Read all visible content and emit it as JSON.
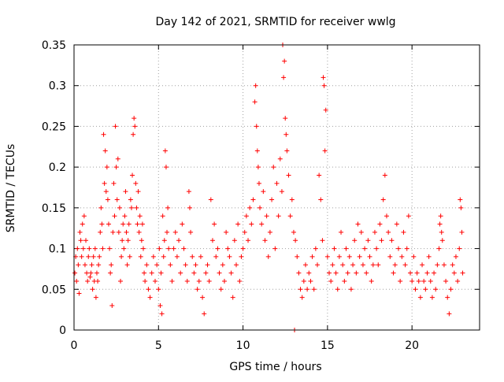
{
  "chart_data": {
    "type": "scatter",
    "title": "Day 142 of 2021, SRMTID for receiver wwlg",
    "xlabel": "GPS time / hours",
    "ylabel": "SRMTID / TECUs",
    "xlim": [
      0,
      24
    ],
    "ylim": [
      0,
      0.35
    ],
    "x_ticks": [
      0,
      5,
      10,
      15,
      20
    ],
    "x_tick_labels": [
      "0",
      "5",
      "10",
      "15",
      "20"
    ],
    "y_ticks": [
      0,
      0.05,
      0.1,
      0.15,
      0.2,
      0.25,
      0.3,
      0.35
    ],
    "y_tick_labels": [
      "0",
      "0.05",
      "0.1",
      "0.15",
      "0.2",
      "0.25",
      "0.3",
      "0.35"
    ],
    "grid": true,
    "marker": "plus",
    "series": [
      {
        "name": "SRMTID",
        "color": "#ff0000",
        "points": [
          [
            0.05,
            0.07
          ],
          [
            0.1,
            0.09
          ],
          [
            0.15,
            0.06
          ],
          [
            0.2,
            0.1
          ],
          [
            0.25,
            0.08
          ],
          [
            0.3,
            0.045
          ],
          [
            0.35,
            0.12
          ],
          [
            0.4,
            0.11
          ],
          [
            0.45,
            0.09
          ],
          [
            0.5,
            0.13
          ],
          [
            0.55,
            0.1
          ],
          [
            0.6,
            0.14
          ],
          [
            0.65,
            0.08
          ],
          [
            0.7,
            0.11
          ],
          [
            0.75,
            0.07
          ],
          [
            0.8,
            0.06
          ],
          [
            0.85,
            0.09
          ],
          [
            0.9,
            0.1
          ],
          [
            0.95,
            0.065
          ],
          [
            1.0,
            0.07
          ],
          [
            1.05,
            0.08
          ],
          [
            1.1,
            0.05
          ],
          [
            1.15,
            0.09
          ],
          [
            1.2,
            0.06
          ],
          [
            1.25,
            0.1
          ],
          [
            1.3,
            0.04
          ],
          [
            1.35,
            0.07
          ],
          [
            1.4,
            0.06
          ],
          [
            1.45,
            0.08
          ],
          [
            1.5,
            0.09
          ],
          [
            1.55,
            0.12
          ],
          [
            1.6,
            0.15
          ],
          [
            1.65,
            0.13
          ],
          [
            1.7,
            0.1
          ],
          [
            1.75,
            0.24
          ],
          [
            1.8,
            0.18
          ],
          [
            1.85,
            0.22
          ],
          [
            1.9,
            0.17
          ],
          [
            1.95,
            0.2
          ],
          [
            2.0,
            0.16
          ],
          [
            2.05,
            0.13
          ],
          [
            2.1,
            0.1
          ],
          [
            2.15,
            0.07
          ],
          [
            2.2,
            0.08
          ],
          [
            2.25,
            0.03
          ],
          [
            2.3,
            0.12
          ],
          [
            2.35,
            0.18
          ],
          [
            2.4,
            0.14
          ],
          [
            2.45,
            0.25
          ],
          [
            2.5,
            0.2
          ],
          [
            2.55,
            0.16
          ],
          [
            2.6,
            0.21
          ],
          [
            2.65,
            0.12
          ],
          [
            2.7,
            0.15
          ],
          [
            2.75,
            0.06
          ],
          [
            2.8,
            0.09
          ],
          [
            2.85,
            0.11
          ],
          [
            2.9,
            0.13
          ],
          [
            2.95,
            0.1
          ],
          [
            3.0,
            0.14
          ],
          [
            3.05,
            0.17
          ],
          [
            3.1,
            0.12
          ],
          [
            3.15,
            0.08
          ],
          [
            3.2,
            0.11
          ],
          [
            3.25,
            0.13
          ],
          [
            3.3,
            0.09
          ],
          [
            3.35,
            0.16
          ],
          [
            3.4,
            0.15
          ],
          [
            3.45,
            0.19
          ],
          [
            3.5,
            0.24
          ],
          [
            3.55,
            0.26
          ],
          [
            3.6,
            0.25
          ],
          [
            3.65,
            0.18
          ],
          [
            3.7,
            0.15
          ],
          [
            3.75,
            0.13
          ],
          [
            3.8,
            0.17
          ],
          [
            3.85,
            0.12
          ],
          [
            3.9,
            0.14
          ],
          [
            3.95,
            0.09
          ],
          [
            4.0,
            0.11
          ],
          [
            4.05,
            0.13
          ],
          [
            4.1,
            0.1
          ],
          [
            4.15,
            0.07
          ],
          [
            4.2,
            0.06
          ],
          [
            4.3,
            0.08
          ],
          [
            4.4,
            0.05
          ],
          [
            4.5,
            0.04
          ],
          [
            4.6,
            0.07
          ],
          [
            4.7,
            0.09
          ],
          [
            4.8,
            0.06
          ],
          [
            4.9,
            0.08
          ],
          [
            5.0,
            0.05
          ],
          [
            5.05,
            0.1
          ],
          [
            5.1,
            0.03
          ],
          [
            5.15,
            0.07
          ],
          [
            5.2,
            0.02
          ],
          [
            5.25,
            0.14
          ],
          [
            5.3,
            0.09
          ],
          [
            5.35,
            0.11
          ],
          [
            5.4,
            0.22
          ],
          [
            5.45,
            0.2
          ],
          [
            5.5,
            0.12
          ],
          [
            5.55,
            0.15
          ],
          [
            5.6,
            0.1
          ],
          [
            5.7,
            0.08
          ],
          [
            5.8,
            0.06
          ],
          [
            5.9,
            0.1
          ],
          [
            6.0,
            0.12
          ],
          [
            6.1,
            0.09
          ],
          [
            6.2,
            0.11
          ],
          [
            6.3,
            0.07
          ],
          [
            6.4,
            0.13
          ],
          [
            6.5,
            0.1
          ],
          [
            6.6,
            0.08
          ],
          [
            6.7,
            0.06
          ],
          [
            6.8,
            0.17
          ],
          [
            6.85,
            0.15
          ],
          [
            6.9,
            0.12
          ],
          [
            7.0,
            0.09
          ],
          [
            7.1,
            0.07
          ],
          [
            7.2,
            0.08
          ],
          [
            7.3,
            0.05
          ],
          [
            7.4,
            0.06
          ],
          [
            7.5,
            0.09
          ],
          [
            7.6,
            0.04
          ],
          [
            7.7,
            0.02
          ],
          [
            7.8,
            0.07
          ],
          [
            7.9,
            0.08
          ],
          [
            8.0,
            0.06
          ],
          [
            8.1,
            0.16
          ],
          [
            8.2,
            0.11
          ],
          [
            8.3,
            0.13
          ],
          [
            8.4,
            0.09
          ],
          [
            8.5,
            0.1
          ],
          [
            8.6,
            0.07
          ],
          [
            8.7,
            0.05
          ],
          [
            8.8,
            0.08
          ],
          [
            8.9,
            0.06
          ],
          [
            9.0,
            0.12
          ],
          [
            9.1,
            0.1
          ],
          [
            9.2,
            0.09
          ],
          [
            9.3,
            0.07
          ],
          [
            9.4,
            0.04
          ],
          [
            9.5,
            0.11
          ],
          [
            9.6,
            0.08
          ],
          [
            9.7,
            0.13
          ],
          [
            9.8,
            0.06
          ],
          [
            9.9,
            0.09
          ],
          [
            10.0,
            0.1
          ],
          [
            10.1,
            0.12
          ],
          [
            10.2,
            0.14
          ],
          [
            10.3,
            0.11
          ],
          [
            10.4,
            0.15
          ],
          [
            10.5,
            0.13
          ],
          [
            10.6,
            0.16
          ],
          [
            10.7,
            0.28
          ],
          [
            10.75,
            0.3
          ],
          [
            10.8,
            0.25
          ],
          [
            10.85,
            0.22
          ],
          [
            10.9,
            0.2
          ],
          [
            10.95,
            0.18
          ],
          [
            11.0,
            0.15
          ],
          [
            11.1,
            0.13
          ],
          [
            11.2,
            0.17
          ],
          [
            11.3,
            0.11
          ],
          [
            11.4,
            0.14
          ],
          [
            11.5,
            0.09
          ],
          [
            11.6,
            0.12
          ],
          [
            11.7,
            0.16
          ],
          [
            11.8,
            0.2
          ],
          [
            11.9,
            0.1
          ],
          [
            12.0,
            0.18
          ],
          [
            12.1,
            0.14
          ],
          [
            12.2,
            0.21
          ],
          [
            12.3,
            0.17
          ],
          [
            12.35,
            0.35
          ],
          [
            12.4,
            0.31
          ],
          [
            12.45,
            0.33
          ],
          [
            12.5,
            0.26
          ],
          [
            12.55,
            0.24
          ],
          [
            12.6,
            0.22
          ],
          [
            12.7,
            0.19
          ],
          [
            12.8,
            0.14
          ],
          [
            12.9,
            0.16
          ],
          [
            13.0,
            0.12
          ],
          [
            13.05,
            0.0
          ],
          [
            13.1,
            0.11
          ],
          [
            13.2,
            0.09
          ],
          [
            13.3,
            0.07
          ],
          [
            13.4,
            0.05
          ],
          [
            13.5,
            0.04
          ],
          [
            13.6,
            0.06
          ],
          [
            13.7,
            0.08
          ],
          [
            13.8,
            0.05
          ],
          [
            13.9,
            0.07
          ],
          [
            14.0,
            0.06
          ],
          [
            14.1,
            0.09
          ],
          [
            14.2,
            0.05
          ],
          [
            14.3,
            0.1
          ],
          [
            14.4,
            0.08
          ],
          [
            14.5,
            0.19
          ],
          [
            14.6,
            0.16
          ],
          [
            14.7,
            0.11
          ],
          [
            14.75,
            0.31
          ],
          [
            14.8,
            0.3
          ],
          [
            14.85,
            0.22
          ],
          [
            14.9,
            0.27
          ],
          [
            15.0,
            0.09
          ],
          [
            15.1,
            0.07
          ],
          [
            15.2,
            0.06
          ],
          [
            15.3,
            0.08
          ],
          [
            15.4,
            0.1
          ],
          [
            15.5,
            0.07
          ],
          [
            15.6,
            0.05
          ],
          [
            15.7,
            0.09
          ],
          [
            15.8,
            0.12
          ],
          [
            15.9,
            0.08
          ],
          [
            16.0,
            0.06
          ],
          [
            16.1,
            0.1
          ],
          [
            16.2,
            0.07
          ],
          [
            16.3,
            0.09
          ],
          [
            16.4,
            0.05
          ],
          [
            16.5,
            0.08
          ],
          [
            16.6,
            0.11
          ],
          [
            16.7,
            0.07
          ],
          [
            16.8,
            0.13
          ],
          [
            16.9,
            0.09
          ],
          [
            17.0,
            0.12
          ],
          [
            17.1,
            0.08
          ],
          [
            17.2,
            0.1
          ],
          [
            17.3,
            0.07
          ],
          [
            17.4,
            0.11
          ],
          [
            17.5,
            0.09
          ],
          [
            17.6,
            0.06
          ],
          [
            17.7,
            0.08
          ],
          [
            17.8,
            0.12
          ],
          [
            17.9,
            0.1
          ],
          [
            18.0,
            0.08
          ],
          [
            18.1,
            0.13
          ],
          [
            18.2,
            0.11
          ],
          [
            18.3,
            0.16
          ],
          [
            18.4,
            0.19
          ],
          [
            18.5,
            0.14
          ],
          [
            18.6,
            0.12
          ],
          [
            18.7,
            0.09
          ],
          [
            18.8,
            0.11
          ],
          [
            18.9,
            0.07
          ],
          [
            19.0,
            0.08
          ],
          [
            19.1,
            0.13
          ],
          [
            19.2,
            0.1
          ],
          [
            19.3,
            0.06
          ],
          [
            19.4,
            0.09
          ],
          [
            19.5,
            0.12
          ],
          [
            19.6,
            0.08
          ],
          [
            19.7,
            0.1
          ],
          [
            19.8,
            0.14
          ],
          [
            19.9,
            0.07
          ],
          [
            20.0,
            0.06
          ],
          [
            20.1,
            0.09
          ],
          [
            20.2,
            0.05
          ],
          [
            20.3,
            0.07
          ],
          [
            20.4,
            0.06
          ],
          [
            20.5,
            0.04
          ],
          [
            20.6,
            0.08
          ],
          [
            20.7,
            0.06
          ],
          [
            20.8,
            0.05
          ],
          [
            20.9,
            0.07
          ],
          [
            21.0,
            0.09
          ],
          [
            21.1,
            0.06
          ],
          [
            21.2,
            0.04
          ],
          [
            21.3,
            0.07
          ],
          [
            21.4,
            0.05
          ],
          [
            21.5,
            0.08
          ],
          [
            21.6,
            0.1
          ],
          [
            21.65,
            0.13
          ],
          [
            21.7,
            0.14
          ],
          [
            21.75,
            0.12
          ],
          [
            21.8,
            0.11
          ],
          [
            21.9,
            0.08
          ],
          [
            22.0,
            0.06
          ],
          [
            22.1,
            0.04
          ],
          [
            22.2,
            0.02
          ],
          [
            22.3,
            0.05
          ],
          [
            22.4,
            0.08
          ],
          [
            22.5,
            0.07
          ],
          [
            22.6,
            0.09
          ],
          [
            22.7,
            0.06
          ],
          [
            22.8,
            0.1
          ],
          [
            22.85,
            0.16
          ],
          [
            22.9,
            0.15
          ],
          [
            22.95,
            0.12
          ],
          [
            23.0,
            0.07
          ]
        ]
      }
    ]
  }
}
